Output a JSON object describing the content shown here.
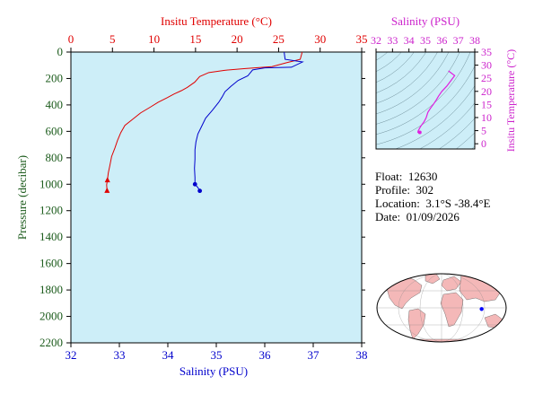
{
  "colors": {
    "temperature": "#e00000",
    "salinity": "#0000cc",
    "ts_curve": "#e020e0",
    "green_axis": "#1a5a1a",
    "plot_bg": "#cdeef8",
    "land": "#f4b8b8",
    "ocean": "#ffffff",
    "float_marker": "#0000ff"
  },
  "info": {
    "float_label": "Float:",
    "float_value": "12630",
    "profile_label": "Profile:",
    "profile_value": "302",
    "location_label": "Location:",
    "location_value": "3.1°S  -38.4°E",
    "date_label": "Date:",
    "date_value": "01/09/2026"
  },
  "chart_data": [
    {
      "type": "line",
      "name": "profile",
      "title": "",
      "top_axis_label": "Insitu Temperature (°C)",
      "bottom_axis_label": "Salinity (PSU)",
      "ylabel": "Pressure (decibar)",
      "temp_ticks": [
        "0",
        "5",
        "10",
        "15",
        "20",
        "25",
        "30",
        "35"
      ],
      "sal_ticks": [
        "32",
        "33",
        "34",
        "35",
        "36",
        "37",
        "38"
      ],
      "pres_ticks": [
        "0",
        "200",
        "400",
        "600",
        "800",
        "1000",
        "1200",
        "1400",
        "1600",
        "1800",
        "2000",
        "2200"
      ],
      "temp_range": [
        0,
        35
      ],
      "sal_range": [
        32,
        38
      ],
      "pres_range": [
        0,
        2200
      ],
      "y_inverted": true,
      "grid": false,
      "series": [
        {
          "name": "temperature",
          "axis": "top",
          "points": [
            [
              27.8,
              0
            ],
            [
              27.8,
              10
            ],
            [
              27.6,
              55
            ],
            [
              26.0,
              80
            ],
            [
              24.2,
              110
            ],
            [
              21.0,
              125
            ],
            [
              18.5,
              138
            ],
            [
              16.6,
              155
            ],
            [
              15.5,
              185
            ],
            [
              14.9,
              228
            ],
            [
              14.0,
              268
            ],
            [
              13.3,
              292
            ],
            [
              12.4,
              318
            ],
            [
              11.6,
              345
            ],
            [
              10.5,
              380
            ],
            [
              9.6,
              415
            ],
            [
              8.4,
              460
            ],
            [
              7.4,
              510
            ],
            [
              6.5,
              555
            ],
            [
              6.0,
              610
            ],
            [
              5.6,
              670
            ],
            [
              5.3,
              725
            ],
            [
              4.9,
              790
            ],
            [
              4.7,
              855
            ],
            [
              4.5,
              915
            ],
            [
              4.4,
              965
            ],
            [
              4.3,
              1005
            ],
            [
              4.35,
              1045
            ]
          ]
        },
        {
          "name": "salinity",
          "axis": "bottom",
          "points": [
            [
              36.4,
              0
            ],
            [
              36.42,
              55
            ],
            [
              36.78,
              75
            ],
            [
              36.55,
              115
            ],
            [
              36.0,
              120
            ],
            [
              35.75,
              135
            ],
            [
              35.65,
              180
            ],
            [
              35.45,
              215
            ],
            [
              35.3,
              260
            ],
            [
              35.18,
              300
            ],
            [
              35.12,
              340
            ],
            [
              35.05,
              380
            ],
            [
              34.92,
              440
            ],
            [
              34.78,
              500
            ],
            [
              34.7,
              560
            ],
            [
              34.62,
              620
            ],
            [
              34.58,
              680
            ],
            [
              34.56,
              740
            ],
            [
              34.56,
              810
            ],
            [
              34.55,
              880
            ],
            [
              34.56,
              950
            ],
            [
              34.56,
              1000
            ],
            [
              34.62,
              1025
            ],
            [
              34.66,
              1050
            ]
          ]
        }
      ]
    },
    {
      "type": "line",
      "name": "ts-diagram",
      "title": "",
      "top_axis_label": "Salinity (PSU)",
      "right_axis_label": "Insitu Temperature (°C)",
      "sal_ticks": [
        "32",
        "33",
        "34",
        "35",
        "36",
        "37",
        "38"
      ],
      "temp_ticks": [
        "0",
        "5",
        "10",
        "15",
        "20",
        "25",
        "30",
        "35"
      ],
      "sal_range": [
        32,
        38
      ],
      "temp_range": [
        -2,
        35
      ],
      "points": [
        [
          36.4,
          27.8
        ],
        [
          36.78,
          26.0
        ],
        [
          36.6,
          24.5
        ],
        [
          36.3,
          22.0
        ],
        [
          36.0,
          20.0
        ],
        [
          35.8,
          18.2
        ],
        [
          35.65,
          16.6
        ],
        [
          35.5,
          15.2
        ],
        [
          35.3,
          13.5
        ],
        [
          35.15,
          12.0
        ],
        [
          35.05,
          10.0
        ],
        [
          34.92,
          8.4
        ],
        [
          34.8,
          7.4
        ],
        [
          34.7,
          6.5
        ],
        [
          34.62,
          5.6
        ],
        [
          34.56,
          4.9
        ],
        [
          34.54,
          4.4
        ],
        [
          34.56,
          4.3
        ],
        [
          34.62,
          4.6
        ],
        [
          34.66,
          4.35
        ]
      ]
    }
  ],
  "map": {
    "float_lon": -38.4,
    "float_lat": -3.1
  }
}
